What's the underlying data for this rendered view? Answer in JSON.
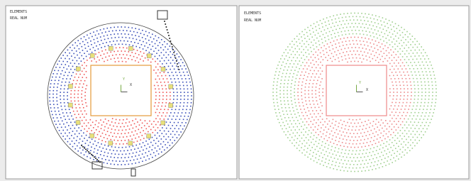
{
  "panels": [
    {
      "title": "ELEMENTS",
      "subtitle": "REAL NUM",
      "axis_y": "Y",
      "axis_x": "X"
    },
    {
      "title": "ELEMENTS",
      "subtitle": "REAL NUM",
      "axis_y": "Y",
      "axis_x": "X"
    }
  ]
}
